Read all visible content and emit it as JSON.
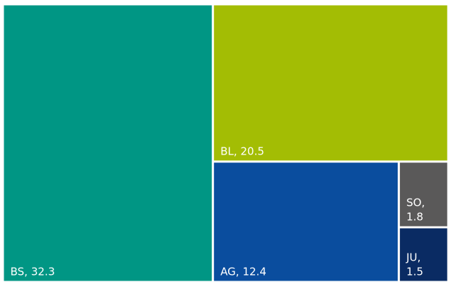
{
  "chart_data": {
    "type": "treemap",
    "categories": [
      "BS",
      "BL",
      "AG",
      "SO",
      "JU"
    ],
    "values": [
      32.3,
      20.5,
      12.4,
      1.8,
      1.5
    ],
    "labels": [
      "BS, 32.3",
      "BL, 20.5",
      "AG, 12.4",
      "SO, 1.8",
      "JU, 1.5"
    ],
    "colors": [
      "#009684",
      "#A3BD04",
      "#0A4D9E",
      "#5A5959",
      "#0A2B63"
    ],
    "title": "",
    "legend": "none"
  }
}
